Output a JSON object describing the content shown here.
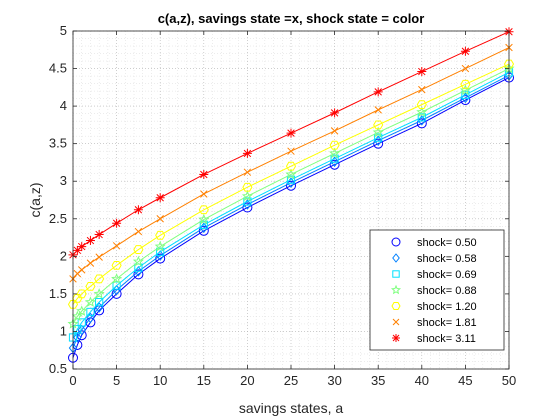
{
  "chart_data": {
    "type": "scatter",
    "title": "c(a,z), savings state =x, shock state = color",
    "xlabel": "savings states, a",
    "ylabel": "c(a,z)",
    "xlim": [
      0,
      50
    ],
    "ylim": [
      0.5,
      5
    ],
    "x_ticks": [
      "0",
      "5",
      "10",
      "15",
      "20",
      "25",
      "30",
      "35",
      "40",
      "45",
      "50"
    ],
    "y_ticks": [
      "0.5",
      "1",
      "1.5",
      "2",
      "2.5",
      "3",
      "3.5",
      "4",
      "4.5",
      "5"
    ],
    "grid": "major and minor, dotted",
    "legend_position": "bottom-right",
    "x": [
      0,
      0.5,
      1,
      2,
      3,
      5,
      7.5,
      10,
      15,
      20,
      25,
      30,
      35,
      40,
      45,
      50
    ],
    "series": [
      {
        "name": "shock=  0.50",
        "marker": "circle",
        "color": "#0000ff",
        "values": [
          0.65,
          0.82,
          0.95,
          1.12,
          1.28,
          1.5,
          1.76,
          1.97,
          2.34,
          2.65,
          2.94,
          3.22,
          3.5,
          3.77,
          4.08,
          4.38
        ]
      },
      {
        "name": "shock=  0.58",
        "marker": "diamond",
        "color": "#0080ff",
        "values": [
          0.78,
          0.92,
          1.02,
          1.18,
          1.32,
          1.55,
          1.8,
          2.01,
          2.38,
          2.69,
          2.98,
          3.26,
          3.54,
          3.81,
          4.11,
          4.41
        ]
      },
      {
        "name": "shock=  0.69",
        "marker": "square",
        "color": "#00e0ff",
        "values": [
          0.92,
          1.03,
          1.12,
          1.26,
          1.39,
          1.61,
          1.85,
          2.06,
          2.42,
          2.73,
          3.02,
          3.3,
          3.58,
          3.85,
          4.15,
          4.45
        ]
      },
      {
        "name": "shock=  0.88",
        "marker": "star5",
        "color": "#80ff80",
        "values": [
          1.1,
          1.2,
          1.27,
          1.39,
          1.5,
          1.7,
          1.93,
          2.13,
          2.49,
          2.8,
          3.09,
          3.37,
          3.65,
          3.92,
          4.21,
          4.5
        ]
      },
      {
        "name": "shock=  1.20",
        "marker": "hexagon",
        "color": "#ffff00",
        "values": [
          1.36,
          1.44,
          1.5,
          1.6,
          1.7,
          1.88,
          2.09,
          2.28,
          2.62,
          2.92,
          3.2,
          3.48,
          3.75,
          4.02,
          4.29,
          4.56
        ]
      },
      {
        "name": "shock=  1.81",
        "marker": "x",
        "color": "#ff8000",
        "values": [
          1.7,
          1.77,
          1.82,
          1.91,
          1.99,
          2.14,
          2.33,
          2.5,
          2.83,
          3.12,
          3.4,
          3.67,
          3.95,
          4.22,
          4.5,
          4.78
        ]
      },
      {
        "name": "shock=  3.11",
        "marker": "asterisk",
        "color": "#ff0000",
        "values": [
          2.02,
          2.08,
          2.13,
          2.21,
          2.29,
          2.44,
          2.62,
          2.78,
          3.09,
          3.37,
          3.64,
          3.91,
          4.19,
          4.46,
          4.73,
          4.99
        ]
      }
    ]
  }
}
